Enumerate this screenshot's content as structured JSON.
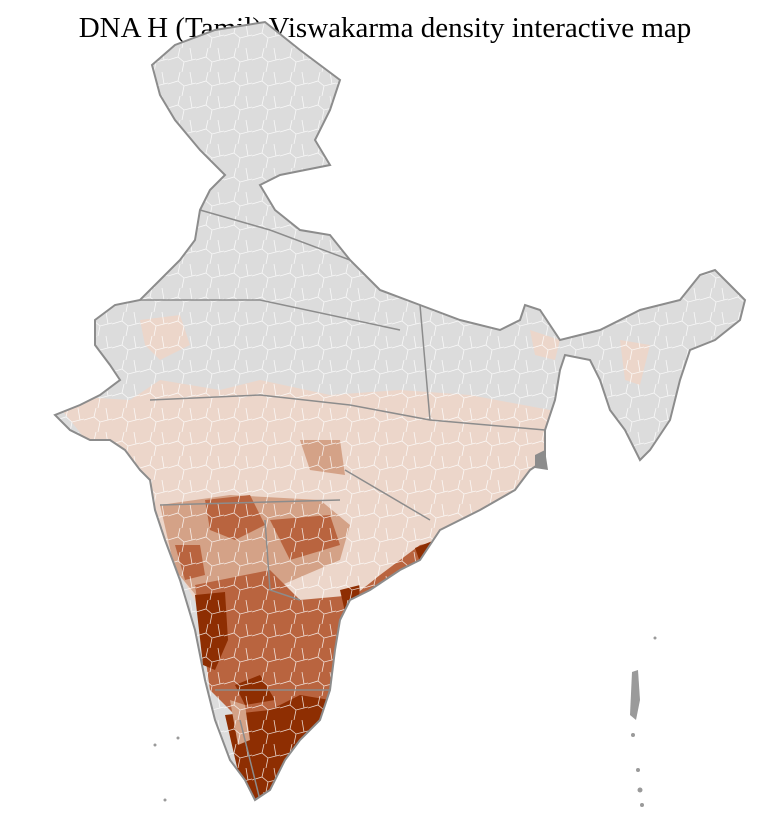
{
  "title": "DNA H (Tamil) Viswakarma density interactive map",
  "map": {
    "type": "choropleth",
    "region": "India districts",
    "colors": {
      "no_data": "#dcdcdc",
      "level_1": "#ecd6ca",
      "level_2": "#d4a287",
      "level_3": "#b9643f",
      "level_4": "#8e2e02",
      "border": "#8c8c8c",
      "district_border": "#ffffff"
    }
  }
}
